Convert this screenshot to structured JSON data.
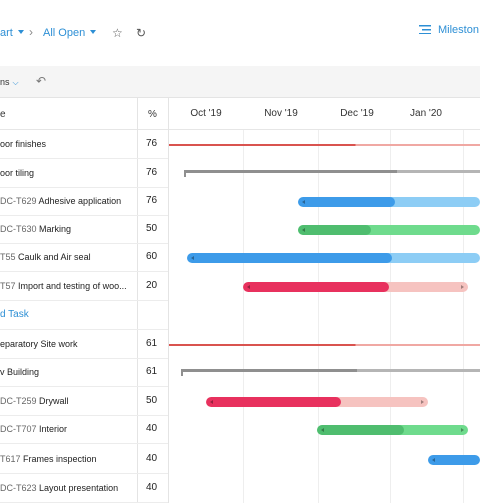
{
  "toolbar": {
    "breadcrumb_project": "art",
    "breadcrumb_view": "All Open",
    "milestones_label": "Mileston"
  },
  "subbar": {
    "options_label": "ns"
  },
  "table": {
    "task_header": "e",
    "percent_header": "%"
  },
  "timeline": {
    "months": [
      "Oct '19",
      "Nov '19",
      "Dec '19",
      "Jan '20"
    ]
  },
  "rows": [
    {
      "code": "",
      "name": "oor finishes",
      "percent": "76",
      "kind": "summary-red",
      "start": 0.0,
      "end": 1.0,
      "done": 0.0
    },
    {
      "code": "",
      "name": "oor tiling",
      "percent": "76",
      "kind": "summary-grey",
      "start": 0.04,
      "end": 1.0,
      "done": 0.72
    },
    {
      "code": "DC-T629",
      "name": "Adhesive application",
      "percent": "76",
      "kind": "bar",
      "color": "#3d9be9",
      "light": "#8dcdf5",
      "start": 0.41,
      "end": 1.0,
      "done": 0.53
    },
    {
      "code": "DC-T630",
      "name": "Marking",
      "percent": "50",
      "kind": "bar",
      "color": "#4fbd6f",
      "light": "#6fdb8d",
      "start": 0.41,
      "end": 1.0,
      "done": 0.4
    },
    {
      "code": "T55",
      "name": "Caulk and Air seal",
      "percent": "60",
      "kind": "bar",
      "color": "#3d9be9",
      "light": "#8dcdf5",
      "start": 0.05,
      "end": 1.0,
      "done": 0.7
    },
    {
      "code": "T57",
      "name": "Import and testing of woo...",
      "percent": "20",
      "kind": "bar",
      "color": "#e8315e",
      "light": "#f6c3c0",
      "start": 0.23,
      "end": 0.96,
      "done": 0.65
    },
    {
      "code": "",
      "name": "d Task",
      "percent": "",
      "kind": "group"
    },
    {
      "code": "",
      "name": "eparatory Site work",
      "percent": "61",
      "kind": "summary-red",
      "start": 0.0,
      "end": 1.0,
      "done": 0.0
    },
    {
      "code": "",
      "name": "v Building",
      "percent": "61",
      "kind": "summary-grey",
      "start": 0.03,
      "end": 1.0,
      "done": 0.59
    },
    {
      "code": "DC-T259",
      "name": "Drywall",
      "percent": "50",
      "kind": "bar",
      "color": "#e8315e",
      "light": "#f6c3c0",
      "start": 0.11,
      "end": 0.83,
      "done": 0.61
    },
    {
      "code": "DC-T707",
      "name": "Interior",
      "percent": "40",
      "kind": "bar",
      "color": "#4fbd6f",
      "light": "#6fdb8d",
      "start": 0.47,
      "end": 0.96,
      "done": 0.58
    },
    {
      "code": "T617",
      "name": "Frames inspection",
      "percent": "40",
      "kind": "bar",
      "color": "#3d9be9",
      "light": "#8dcdf5",
      "start": 0.83,
      "end": 1.0,
      "done": 1.0
    },
    {
      "code": "DC-T623",
      "name": "Layout presentation",
      "percent": "40",
      "kind": "none"
    }
  ]
}
